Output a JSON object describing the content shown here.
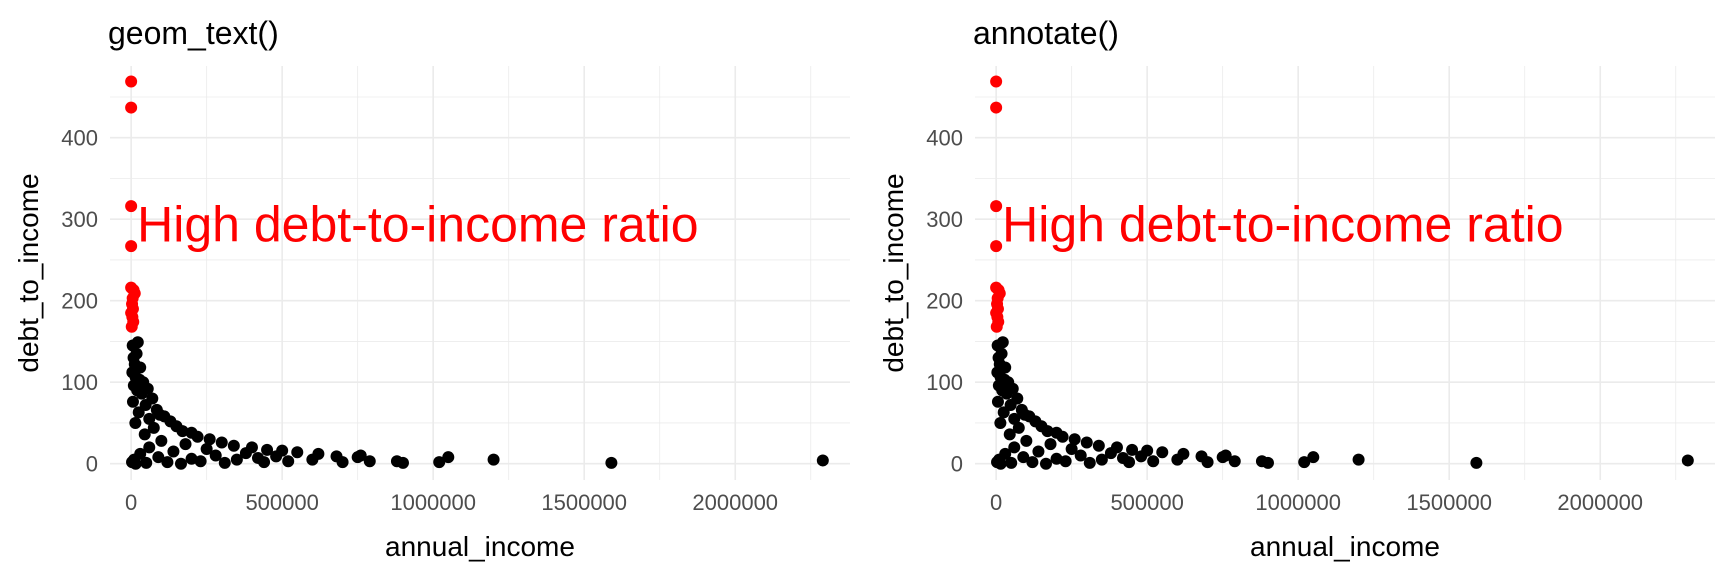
{
  "chart_data": [
    {
      "type": "scatter",
      "title": "geom_text()",
      "xlabel": "annual_income",
      "ylabel": "debt_to_income",
      "xlim": [
        -70000,
        2380000
      ],
      "ylim": [
        -20,
        488
      ],
      "x_ticks": [
        0,
        500000,
        1000000,
        1500000,
        2000000
      ],
      "x_tick_labels": [
        "0",
        "500000",
        "1000000",
        "1500000",
        "2000000"
      ],
      "y_ticks": [
        0,
        100,
        200,
        300,
        400
      ],
      "y_tick_labels": [
        "0",
        "100",
        "200",
        "300",
        "400"
      ],
      "grid": true,
      "annotation": {
        "text": "High debt-to-income ratio",
        "x": 0,
        "y": 295,
        "color": "#ff0000"
      },
      "series": [
        {
          "color": "#ff0000",
          "points": [
            [
              0,
              469
            ],
            [
              0,
              437
            ],
            [
              0,
              316
            ],
            [
              0,
              267
            ],
            [
              0,
              216
            ],
            [
              8000,
              213
            ],
            [
              12000,
              209
            ],
            [
              5000,
              203
            ],
            [
              3000,
              196
            ],
            [
              6000,
              190
            ],
            [
              0,
              185
            ],
            [
              4000,
              180
            ],
            [
              7000,
              174
            ],
            [
              2000,
              168
            ]
          ]
        },
        {
          "color": "#000000",
          "points": [
            [
              5000,
              145
            ],
            [
              22000,
              149
            ],
            [
              18000,
              135
            ],
            [
              8000,
              130
            ],
            [
              12000,
              122
            ],
            [
              30000,
              118
            ],
            [
              4000,
              112
            ],
            [
              15000,
              106
            ],
            [
              28000,
              103
            ],
            [
              40000,
              100
            ],
            [
              9000,
              96
            ],
            [
              55000,
              92
            ],
            [
              20000,
              90
            ],
            [
              35000,
              86
            ],
            [
              70000,
              80
            ],
            [
              6000,
              76
            ],
            [
              48000,
              72
            ],
            [
              85000,
              66
            ],
            [
              25000,
              63
            ],
            [
              95000,
              60
            ],
            [
              110000,
              58
            ],
            [
              60000,
              55
            ],
            [
              130000,
              52
            ],
            [
              14000,
              50
            ],
            [
              150000,
              46
            ],
            [
              75000,
              44
            ],
            [
              170000,
              40
            ],
            [
              200000,
              38
            ],
            [
              45000,
              36
            ],
            [
              220000,
              33
            ],
            [
              260000,
              30
            ],
            [
              100000,
              28
            ],
            [
              300000,
              26
            ],
            [
              180000,
              24
            ],
            [
              340000,
              22
            ],
            [
              400000,
              20
            ],
            [
              250000,
              18
            ],
            [
              450000,
              17
            ],
            [
              500000,
              16
            ],
            [
              550000,
              14
            ],
            [
              380000,
              13
            ],
            [
              620000,
              12
            ],
            [
              680000,
              9
            ],
            [
              750000,
              8
            ],
            [
              420000,
              7
            ],
            [
              600000,
              5
            ],
            [
              10000,
              5
            ],
            [
              30000,
              12
            ],
            [
              60000,
              20
            ],
            [
              90000,
              8
            ],
            [
              140000,
              15
            ],
            [
              200000,
              6
            ],
            [
              280000,
              10
            ],
            [
              350000,
              5
            ],
            [
              480000,
              9
            ],
            [
              520000,
              3
            ],
            [
              700000,
              2
            ],
            [
              760000,
              10
            ],
            [
              790000,
              3
            ],
            [
              880000,
              3
            ],
            [
              900000,
              1
            ],
            [
              1020000,
              2
            ],
            [
              1050000,
              8
            ],
            [
              1200000,
              5
            ],
            [
              1590000,
              1
            ],
            [
              2290000,
              4
            ],
            [
              3000,
              2
            ],
            [
              15000,
              0
            ],
            [
              50000,
              1
            ],
            [
              120000,
              2
            ],
            [
              165000,
              0
            ],
            [
              230000,
              3
            ],
            [
              310000,
              1
            ],
            [
              440000,
              2
            ]
          ]
        }
      ]
    },
    {
      "type": "scatter",
      "title": "annotate()",
      "xlabel": "annual_income",
      "ylabel": "debt_to_income",
      "xlim": [
        -70000,
        2380000
      ],
      "ylim": [
        -20,
        488
      ],
      "x_ticks": [
        0,
        500000,
        1000000,
        1500000,
        2000000
      ],
      "x_tick_labels": [
        "0",
        "500000",
        "1000000",
        "1500000",
        "2000000"
      ],
      "y_ticks": [
        0,
        100,
        200,
        300,
        400
      ],
      "y_tick_labels": [
        "0",
        "100",
        "200",
        "300",
        "400"
      ],
      "grid": true,
      "annotation": {
        "text": "High debt-to-income ratio",
        "x": 0,
        "y": 295,
        "color": "#ff0000"
      },
      "series": [
        {
          "color": "#ff0000",
          "points": [
            [
              0,
              469
            ],
            [
              0,
              437
            ],
            [
              0,
              316
            ],
            [
              0,
              267
            ],
            [
              0,
              216
            ],
            [
              8000,
              213
            ],
            [
              12000,
              209
            ],
            [
              5000,
              203
            ],
            [
              3000,
              196
            ],
            [
              6000,
              190
            ],
            [
              0,
              185
            ],
            [
              4000,
              180
            ],
            [
              7000,
              174
            ],
            [
              2000,
              168
            ]
          ]
        },
        {
          "color": "#000000",
          "points": [
            [
              5000,
              145
            ],
            [
              22000,
              149
            ],
            [
              18000,
              135
            ],
            [
              8000,
              130
            ],
            [
              12000,
              122
            ],
            [
              30000,
              118
            ],
            [
              4000,
              112
            ],
            [
              15000,
              106
            ],
            [
              28000,
              103
            ],
            [
              40000,
              100
            ],
            [
              9000,
              96
            ],
            [
              55000,
              92
            ],
            [
              20000,
              90
            ],
            [
              35000,
              86
            ],
            [
              70000,
              80
            ],
            [
              6000,
              76
            ],
            [
              48000,
              72
            ],
            [
              85000,
              66
            ],
            [
              25000,
              63
            ],
            [
              95000,
              60
            ],
            [
              110000,
              58
            ],
            [
              60000,
              55
            ],
            [
              130000,
              52
            ],
            [
              14000,
              50
            ],
            [
              150000,
              46
            ],
            [
              75000,
              44
            ],
            [
              170000,
              40
            ],
            [
              200000,
              38
            ],
            [
              45000,
              36
            ],
            [
              220000,
              33
            ],
            [
              260000,
              30
            ],
            [
              100000,
              28
            ],
            [
              300000,
              26
            ],
            [
              180000,
              24
            ],
            [
              340000,
              22
            ],
            [
              400000,
              20
            ],
            [
              250000,
              18
            ],
            [
              450000,
              17
            ],
            [
              500000,
              16
            ],
            [
              550000,
              14
            ],
            [
              380000,
              13
            ],
            [
              620000,
              12
            ],
            [
              680000,
              9
            ],
            [
              750000,
              8
            ],
            [
              420000,
              7
            ],
            [
              600000,
              5
            ],
            [
              10000,
              5
            ],
            [
              30000,
              12
            ],
            [
              60000,
              20
            ],
            [
              90000,
              8
            ],
            [
              140000,
              15
            ],
            [
              200000,
              6
            ],
            [
              280000,
              10
            ],
            [
              350000,
              5
            ],
            [
              480000,
              9
            ],
            [
              520000,
              3
            ],
            [
              700000,
              2
            ],
            [
              760000,
              10
            ],
            [
              790000,
              3
            ],
            [
              880000,
              3
            ],
            [
              900000,
              1
            ],
            [
              1020000,
              2
            ],
            [
              1050000,
              8
            ],
            [
              1200000,
              5
            ],
            [
              1590000,
              1
            ],
            [
              2290000,
              4
            ],
            [
              3000,
              2
            ],
            [
              15000,
              0
            ],
            [
              50000,
              1
            ],
            [
              120000,
              2
            ],
            [
              165000,
              0
            ],
            [
              230000,
              3
            ],
            [
              310000,
              1
            ],
            [
              440000,
              2
            ]
          ]
        }
      ]
    }
  ]
}
